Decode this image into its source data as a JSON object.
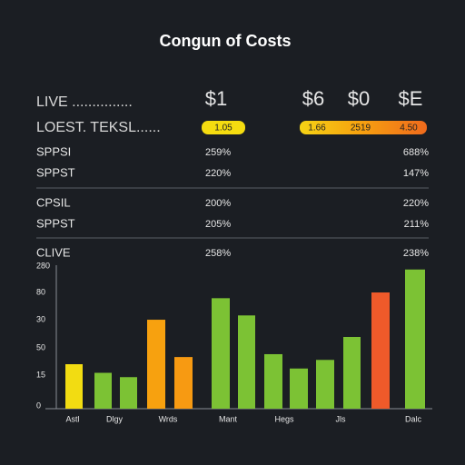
{
  "header": {
    "title": "Congun of Costs"
  },
  "summary": {
    "live_label": "LIVE ...............",
    "live_values": [
      "$1",
      "$6",
      "$0",
      "$E"
    ],
    "lowest_label": "LOEST. TEKSL......",
    "badges": [
      "1.05",
      "1.66",
      "2519",
      "4.50"
    ]
  },
  "table": {
    "rows": [
      [
        "SPPSI",
        "259%",
        "688%"
      ],
      [
        "SPPST",
        "220%",
        "147%"
      ],
      [
        "CPSIL",
        "200%",
        "220%"
      ],
      [
        "SPPST",
        "205%",
        "211%"
      ],
      [
        "CLIVE",
        "258%",
        "238%"
      ]
    ]
  },
  "chart_data": {
    "type": "bar",
    "categories": [
      "Astl",
      null,
      "Dlgy",
      null,
      "Wrds",
      "Mant",
      null,
      "Hegs",
      null,
      null,
      "Jls",
      null,
      "Dalc"
    ],
    "values": [
      31,
      25,
      22,
      62,
      36,
      77,
      65,
      38,
      28,
      34,
      50,
      81,
      97
    ],
    "colors": [
      "#f2dc12",
      "#7cc234",
      "#7cc234",
      "#f7a10f",
      "#f79a12",
      "#7cc234",
      "#7cc234",
      "#7cc234",
      "#7cc234",
      "#7cc234",
      "#7cc234",
      "#ef5a2a",
      "#7cc234"
    ],
    "ylim": [
      0,
      100
    ],
    "y_axis_labels": [
      "280",
      "80",
      "30",
      "50",
      "15",
      "0"
    ]
  }
}
